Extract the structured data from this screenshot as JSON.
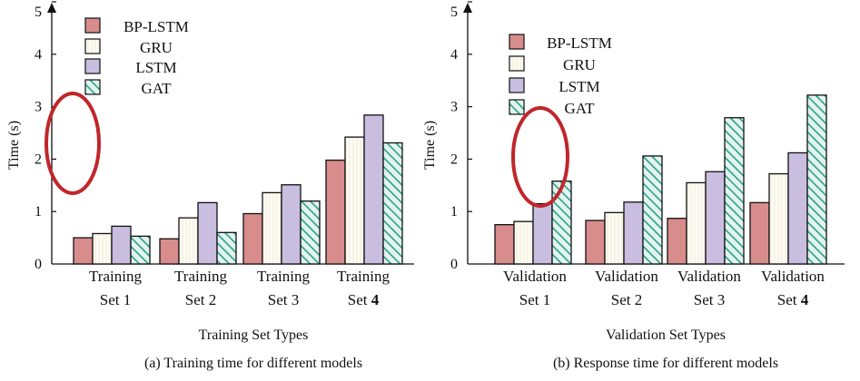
{
  "colors": {
    "bp_lstm": "#d88c8c",
    "gru": "#fdfbf4",
    "lstm": "#c9bde0",
    "gat": "#2aa08a",
    "annotation": "#c0262a",
    "axis": "#111111"
  },
  "chart_data": [
    {
      "type": "bar",
      "caption": "(a) Training time for different models",
      "xlabel": "Training Set Types",
      "ylabel": "Time (s)",
      "ylim": [
        0,
        5
      ],
      "yticks": [
        0,
        1,
        2,
        3,
        4,
        5
      ],
      "categories": [
        {
          "line1": "Training",
          "line2": "Set 1",
          "bold": ""
        },
        {
          "line1": "Training",
          "line2": "Set 2",
          "bold": ""
        },
        {
          "line1": "Training",
          "line2": "Set 3",
          "bold": ""
        },
        {
          "line1": "Training",
          "line2": "Set ",
          "bold": "4"
        }
      ],
      "series": [
        {
          "name": "BP-LSTM",
          "values": [
            0.5,
            0.48,
            0.96,
            1.98
          ]
        },
        {
          "name": "GRU",
          "values": [
            0.58,
            0.88,
            1.36,
            2.42
          ]
        },
        {
          "name": "LSTM",
          "values": [
            0.72,
            1.17,
            1.51,
            2.84
          ]
        },
        {
          "name": "GAT",
          "values": [
            0.53,
            0.6,
            1.2,
            2.31
          ]
        }
      ],
      "legend_position": "top-left",
      "grid": false
    },
    {
      "type": "bar",
      "caption": "(b) Response time for different models",
      "xlabel": "Validation Set Types",
      "ylabel": "Time (s)",
      "ylim": [
        0,
        5
      ],
      "yticks": [
        0,
        1,
        2,
        3,
        4,
        5
      ],
      "categories": [
        {
          "line1": "Validation",
          "line2": "Set 1",
          "bold": ""
        },
        {
          "line1": "Validation",
          "line2": "Set 2",
          "bold": ""
        },
        {
          "line1": "Validation",
          "line2": "Set 3",
          "bold": ""
        },
        {
          "line1": "Validation",
          "line2": "Set ",
          "bold": "4"
        }
      ],
      "series": [
        {
          "name": "BP-LSTM",
          "values": [
            0.75,
            0.83,
            0.87,
            1.17
          ]
        },
        {
          "name": "GRU",
          "values": [
            0.81,
            0.98,
            1.55,
            1.72
          ]
        },
        {
          "name": "LSTM",
          "values": [
            1.15,
            1.18,
            1.76,
            2.12
          ]
        },
        {
          "name": "GAT",
          "values": [
            1.58,
            2.06,
            2.79,
            3.22
          ]
        }
      ],
      "legend_position": "top-left",
      "grid": false
    }
  ]
}
